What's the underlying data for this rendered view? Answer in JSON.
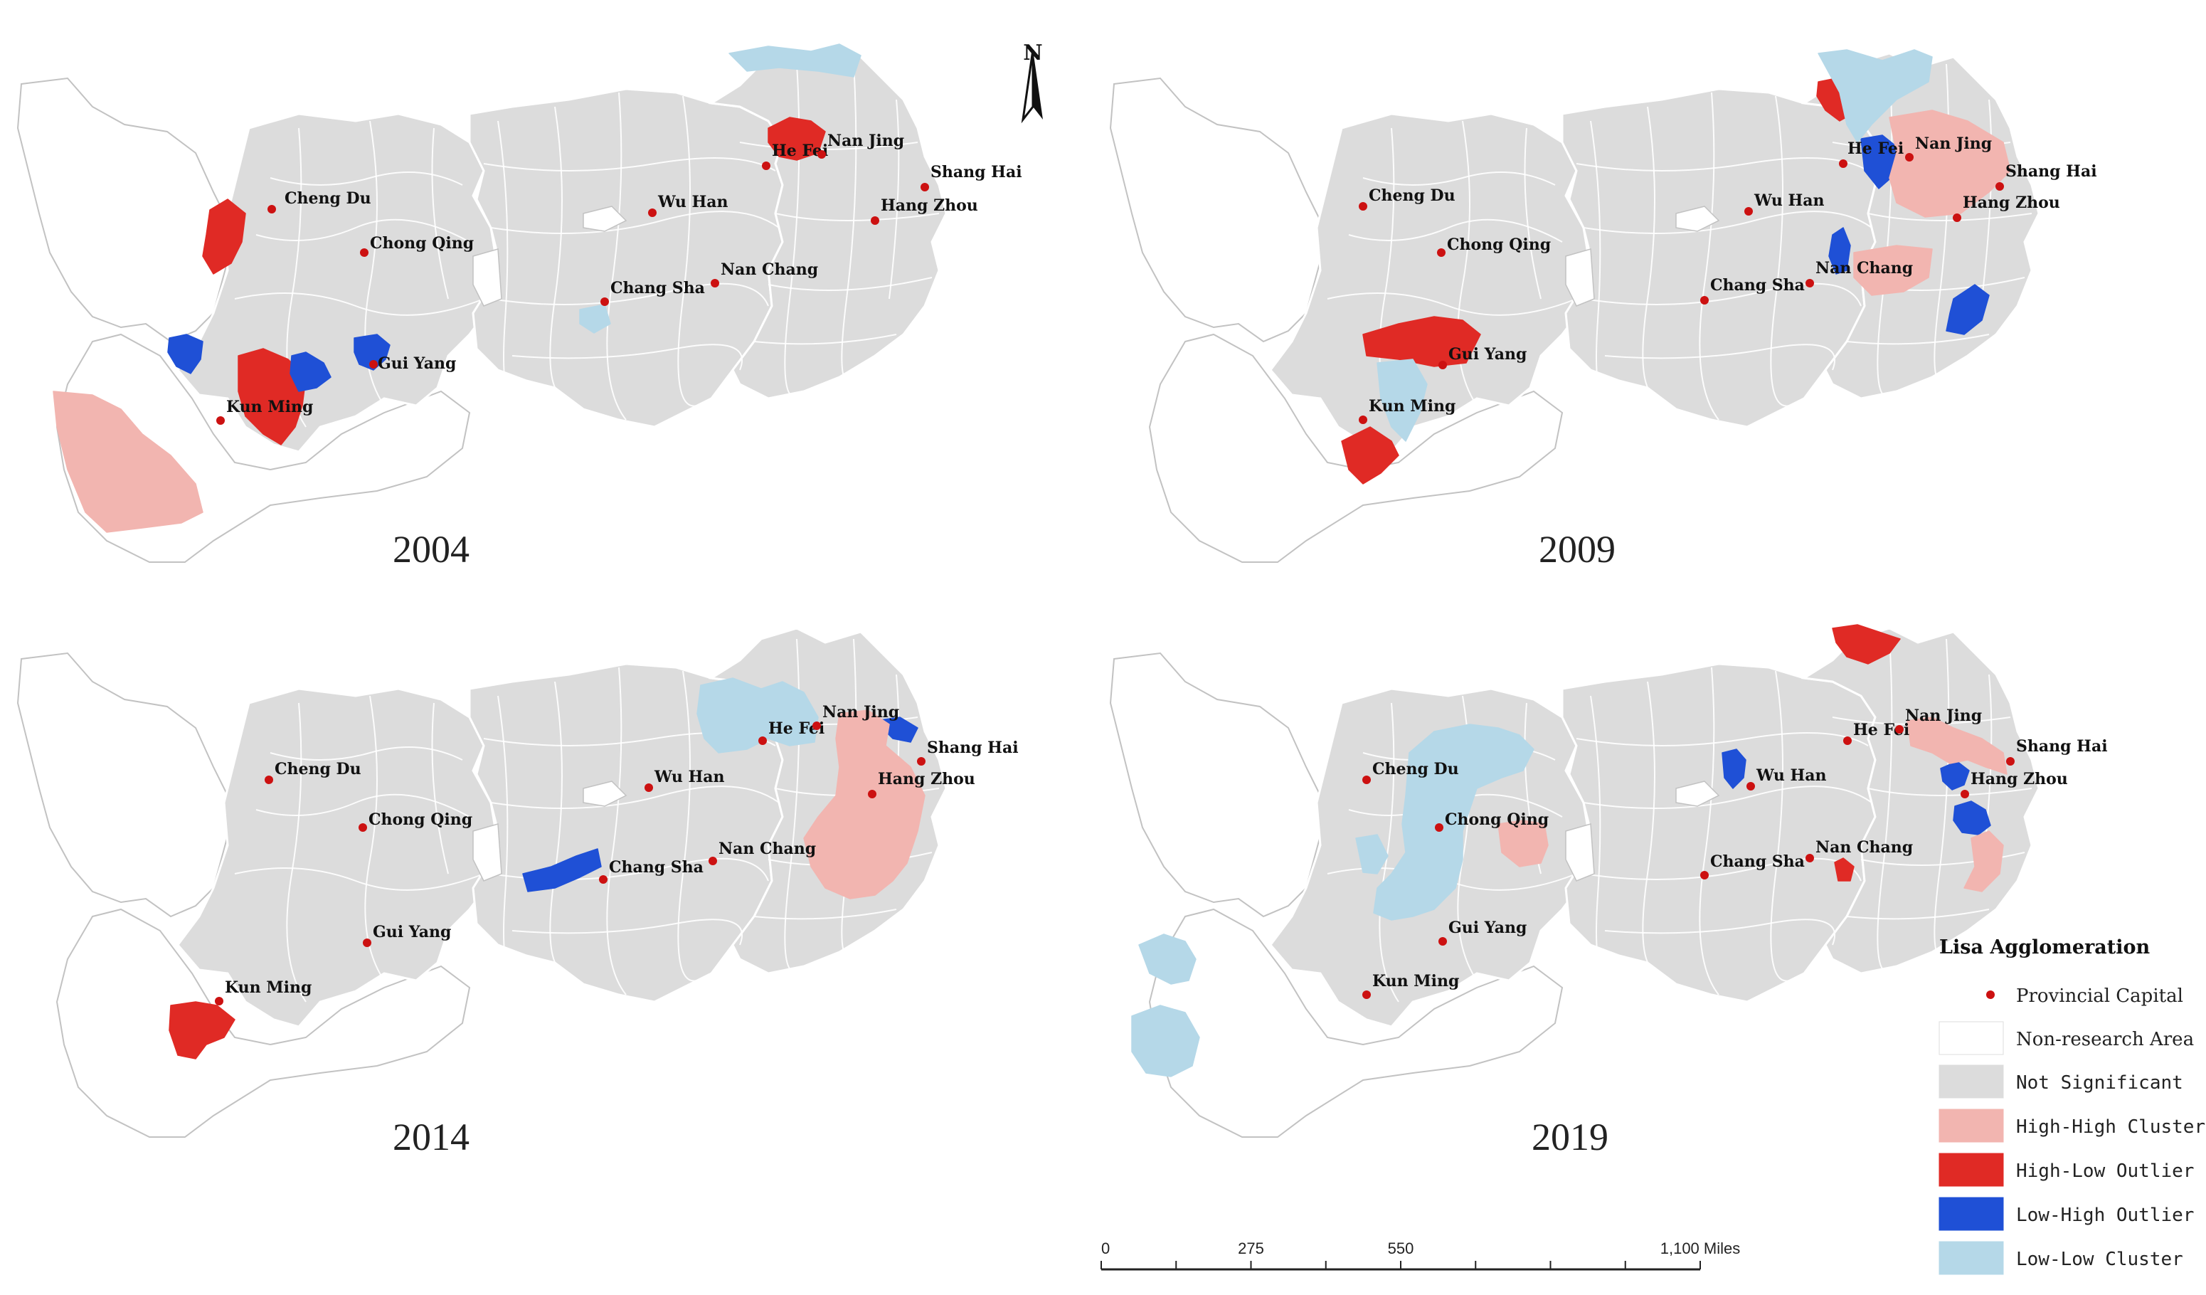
{
  "maps": [
    {
      "year": "2004",
      "clusters": [
        {
          "category": "high_low",
          "name": "cluster-sichuan-west"
        },
        {
          "category": "high_low",
          "name": "cluster-kunming"
        },
        {
          "category": "high_low",
          "name": "cluster-hefei-nanjing"
        },
        {
          "category": "low_high",
          "name": "cluster-yunnan-north"
        },
        {
          "category": "low_high",
          "name": "cluster-kunming-east"
        },
        {
          "category": "low_high",
          "name": "cluster-guiyang"
        },
        {
          "category": "high_high",
          "name": "cluster-yunnan-southwest"
        },
        {
          "category": "low_low",
          "name": "cluster-jiangsu-north"
        },
        {
          "category": "low_low",
          "name": "cluster-hunan-jiangxi"
        }
      ]
    },
    {
      "year": "2009",
      "clusters": [
        {
          "category": "high_low",
          "name": "cluster-anhui-north"
        },
        {
          "category": "high_low",
          "name": "cluster-guizhou-west"
        },
        {
          "category": "high_low",
          "name": "cluster-yunnan-south"
        },
        {
          "category": "low_high",
          "name": "cluster-nanjing"
        },
        {
          "category": "low_high",
          "name": "cluster-jiangxi-north"
        },
        {
          "category": "low_high",
          "name": "cluster-zhejiang-south"
        },
        {
          "category": "high_high",
          "name": "cluster-shanghai-region"
        },
        {
          "category": "high_high",
          "name": "cluster-zhejiang-west"
        },
        {
          "category": "low_low",
          "name": "cluster-jiangsu-anhui-north"
        },
        {
          "category": "low_low",
          "name": "cluster-kunming-region"
        }
      ]
    },
    {
      "year": "2014",
      "clusters": [
        {
          "category": "high_low",
          "name": "cluster-kunming-south"
        },
        {
          "category": "low_high",
          "name": "cluster-hunan-north"
        },
        {
          "category": "low_high",
          "name": "cluster-shanghai-coast"
        },
        {
          "category": "low_high",
          "name": "cluster-hangzhou"
        },
        {
          "category": "high_high",
          "name": "cluster-zhejiang"
        },
        {
          "category": "low_low",
          "name": "cluster-jiangsu-anhui"
        }
      ]
    },
    {
      "year": "2019",
      "clusters": [
        {
          "category": "high_low",
          "name": "cluster-anhui-north"
        },
        {
          "category": "high_low",
          "name": "cluster-jiangxi-north"
        },
        {
          "category": "low_high",
          "name": "cluster-wuhan"
        },
        {
          "category": "low_high",
          "name": "cluster-hangzhou"
        },
        {
          "category": "low_high",
          "name": "cluster-zhejiang-inner"
        },
        {
          "category": "high_high",
          "name": "cluster-shanghai-region"
        },
        {
          "category": "high_high",
          "name": "cluster-zhejiang-south"
        },
        {
          "category": "high_high",
          "name": "cluster-hubei-west"
        },
        {
          "category": "low_low",
          "name": "cluster-chongqing-region"
        },
        {
          "category": "low_low",
          "name": "cluster-sichuan-south"
        },
        {
          "category": "low_low",
          "name": "cluster-yunnan-north"
        },
        {
          "category": "low_low",
          "name": "cluster-yunnan-south"
        }
      ]
    }
  ],
  "cities": [
    {
      "label": "Cheng Du"
    },
    {
      "label": "Chong Qing"
    },
    {
      "label": "Gui Yang"
    },
    {
      "label": "Kun Ming"
    },
    {
      "label": "Wu Han"
    },
    {
      "label": "Chang Sha"
    },
    {
      "label": "Nan Chang"
    },
    {
      "label": "He Fei"
    },
    {
      "label": "Nan Jing"
    },
    {
      "label": "Shang Hai"
    },
    {
      "label": "Hang Zhou"
    }
  ],
  "north_arrow": {
    "label": "N"
  },
  "legend": {
    "title": "Lisa Agglomeration",
    "items": [
      {
        "key": "capital",
        "label": "Provincial Capital"
      },
      {
        "key": "non_research",
        "label": "Non-research Area"
      },
      {
        "key": "not_significant",
        "label": "Not Significant"
      },
      {
        "key": "high_high",
        "label": "High-High Cluster"
      },
      {
        "key": "high_low",
        "label": "High-Low Outlier"
      },
      {
        "key": "low_high",
        "label": "Low-High Outlier"
      },
      {
        "key": "low_low",
        "label": "Low-Low Cluster"
      }
    ]
  },
  "scale_bar": {
    "ticks": [
      "0",
      "275",
      "550",
      "1,100 Miles"
    ],
    "tick_values": [
      0,
      275,
      550,
      1100
    ]
  },
  "colors": {
    "not_significant": "#dcdcdc",
    "non_research": "#ffffff",
    "high_high": "#f2b5b0",
    "high_low": "#e02a25",
    "low_high": "#1f50d6",
    "low_low": "#b5d8e8",
    "capital": "#cc1111",
    "outline": "#c2c2c2"
  }
}
